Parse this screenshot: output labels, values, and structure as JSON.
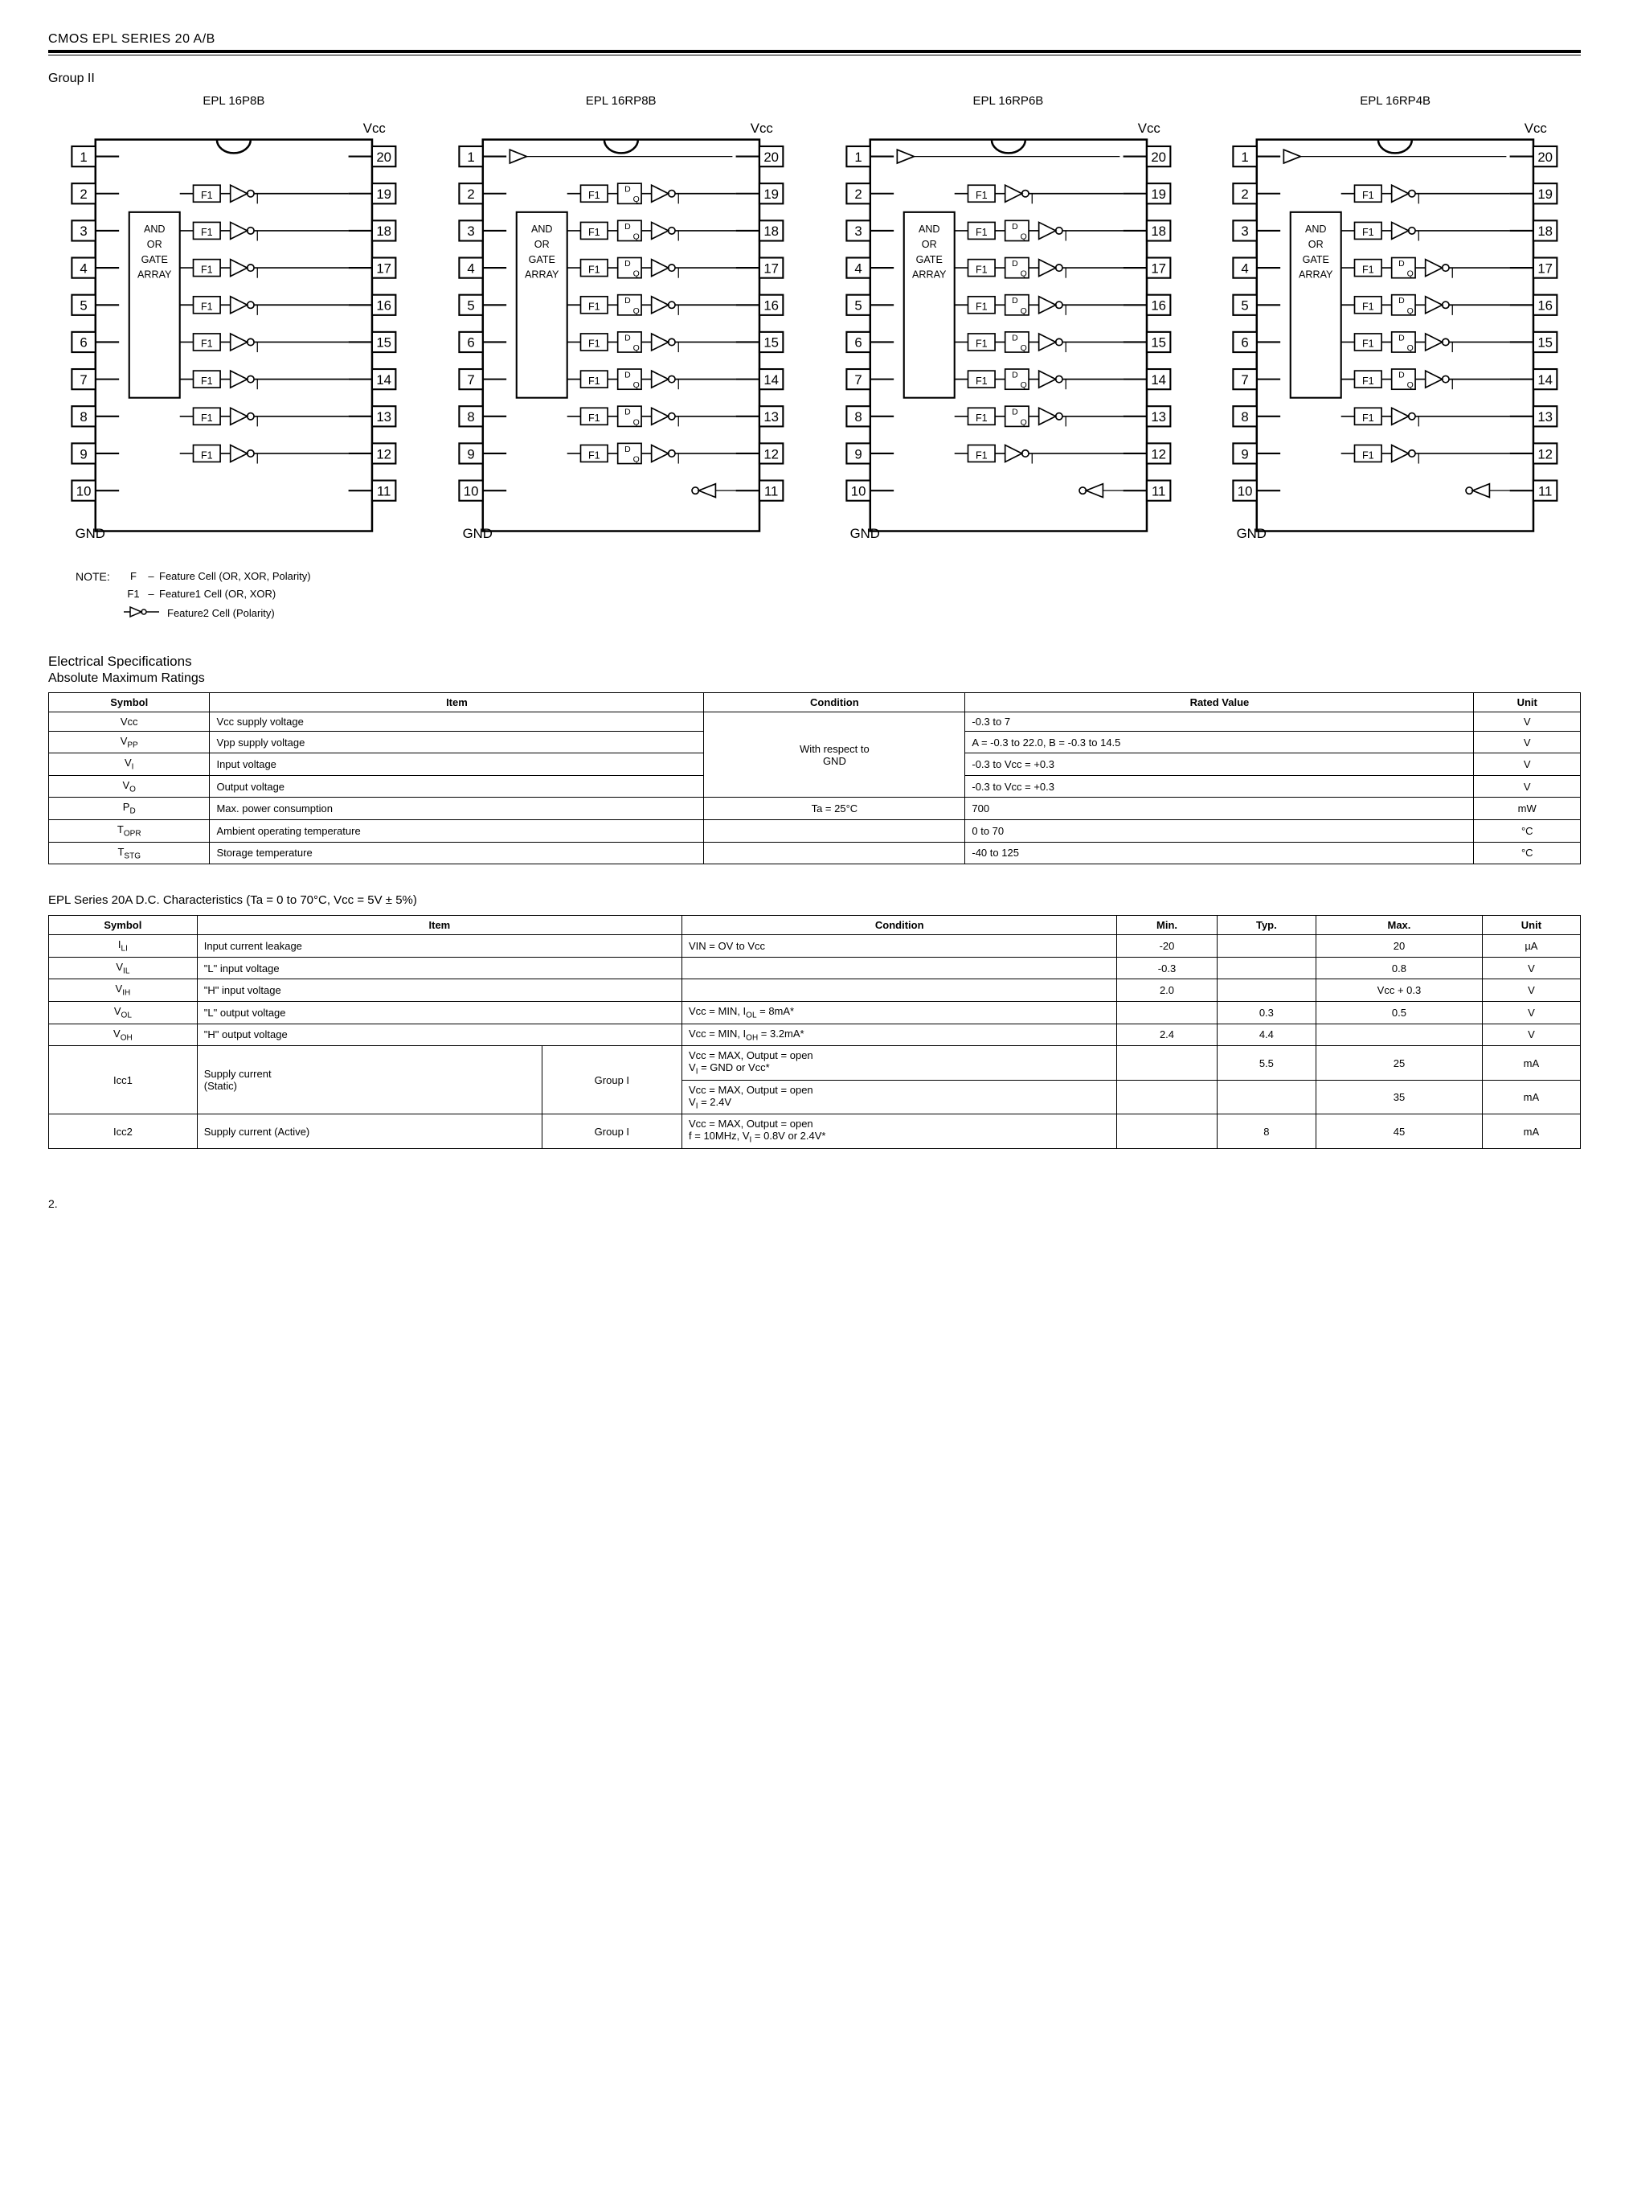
{
  "header": "CMOS EPL SERIES 20 A/B",
  "group_title": "Group II",
  "chips": [
    {
      "title": "EPL 16P8B",
      "f1_rows": 8,
      "reg_rows": 0,
      "block_label": "AND\nOR\nGATE\nARRAY"
    },
    {
      "title": "EPL 16RP8B",
      "f1_rows": 8,
      "reg_rows": 8,
      "block_label": "AND\nOR\nGATE\nARRAY"
    },
    {
      "title": "EPL 16RP6B",
      "f1_rows": 8,
      "reg_rows": 6,
      "block_label": "AND\nOR\nGATE\nARRAY"
    },
    {
      "title": "EPL 16RP4B",
      "f1_rows": 8,
      "reg_rows": 4,
      "block_label": "AND\nOR\nGATE\nARRAY"
    }
  ],
  "pin_count": 20,
  "vcc_label": "Vcc",
  "gnd_label": "GND",
  "f1_box_label": "F1",
  "note": {
    "label": "NOTE:",
    "lines": [
      {
        "sym": "F",
        "dash": "–",
        "text": "Feature Cell (OR, XOR, Polarity)"
      },
      {
        "sym": "F1",
        "dash": "–",
        "text": "Feature1 Cell (OR, XOR)"
      },
      {
        "sym": "",
        "dash": "",
        "text": "Feature2 Cell (Polarity)",
        "icon": true
      }
    ]
  },
  "elec_title": "Electrical Specifications",
  "elec_sub": "Absolute Maximum Ratings",
  "abs_table": {
    "headers": [
      "Symbol",
      "Item",
      "Condition",
      "Rated Value",
      "Unit"
    ],
    "cond_span_text": "With respect to GND",
    "rows": [
      {
        "sym": "Vcc",
        "sub": "",
        "item": "Vcc supply voltage",
        "cond": null,
        "val": "-0.3 to 7",
        "unit": "V"
      },
      {
        "sym": "V",
        "sub": "PP",
        "item": "Vpp supply voltage",
        "cond": null,
        "val": "A = -0.3 to 22.0, B = -0.3 to 14.5",
        "unit": "V"
      },
      {
        "sym": "V",
        "sub": "I",
        "item": "Input voltage",
        "cond": null,
        "val": "-0.3 to Vcc = +0.3",
        "unit": "V"
      },
      {
        "sym": "V",
        "sub": "O",
        "item": "Output voltage",
        "cond": null,
        "val": "-0.3 to Vcc = +0.3",
        "unit": "V"
      },
      {
        "sym": "P",
        "sub": "D",
        "item": "Max. power consumption",
        "cond": "Ta = 25°C",
        "val": "700",
        "unit": "mW"
      },
      {
        "sym": "T",
        "sub": "OPR",
        "item": "Ambient operating temperature",
        "cond": "",
        "val": "0 to 70",
        "unit": "°C"
      },
      {
        "sym": "T",
        "sub": "STG",
        "item": "Storage temperature",
        "cond": "",
        "val": "-40 to 125",
        "unit": "°C"
      }
    ]
  },
  "dc_title": "EPL Series 20A D.C. Characteristics (Ta = 0 to 70°C, Vcc = 5V ± 5%)",
  "dc_table": {
    "headers": [
      "Symbol",
      "Item",
      "Condition",
      "Min.",
      "Typ.",
      "Max.",
      "Unit"
    ],
    "rows": [
      {
        "sym": "I",
        "sub": "LI",
        "item": "Input current leakage",
        "item2": "",
        "cond": "VIN = OV to Vcc",
        "min": "-20",
        "typ": "",
        "max": "20",
        "unit": "µA"
      },
      {
        "sym": "V",
        "sub": "IL",
        "item": "\"L\" input voltage",
        "item2": "",
        "cond": "",
        "min": "-0.3",
        "typ": "",
        "max": "0.8",
        "unit": "V"
      },
      {
        "sym": "V",
        "sub": "IH",
        "item": "\"H\" input voltage",
        "item2": "",
        "cond": "",
        "min": "2.0",
        "typ": "",
        "max": "Vcc + 0.3",
        "unit": "V"
      },
      {
        "sym": "V",
        "sub": "OL",
        "item": "\"L\" output voltage",
        "item2": "",
        "cond": "Vcc = MIN, I_OL = 8mA*",
        "min": "",
        "typ": "0.3",
        "max": "0.5",
        "unit": "V"
      },
      {
        "sym": "V",
        "sub": "OH",
        "item": "\"H\" output voltage",
        "item2": "",
        "cond": "Vcc = MIN, I_OH = 3.2mA*",
        "min": "2.4",
        "typ": "4.4",
        "max": "",
        "unit": "V"
      },
      {
        "sym": "Icc1",
        "sub": "",
        "item": "Supply current (Static)",
        "item2": "Group I",
        "cond": "Vcc = MAX, Output = open\nV_I = GND or Vcc*",
        "min": "",
        "typ": "5.5",
        "max": "25",
        "unit": "mA",
        "rowspan_item": 2
      },
      {
        "sym": "",
        "sub": "",
        "item": "",
        "item2": "",
        "cond": "Vcc = MAX, Output = open\nV_I = 2.4V",
        "min": "",
        "typ": "",
        "max": "35",
        "unit": "mA"
      },
      {
        "sym": "Icc2",
        "sub": "",
        "item": "Supply current (Active)",
        "item2": "Group I",
        "cond": "Vcc = MAX, Output = open\nf = 10MHz, V_I = 0.8V or 2.4V*",
        "min": "",
        "typ": "8",
        "max": "45",
        "unit": "mA"
      }
    ]
  },
  "page_number": "2."
}
